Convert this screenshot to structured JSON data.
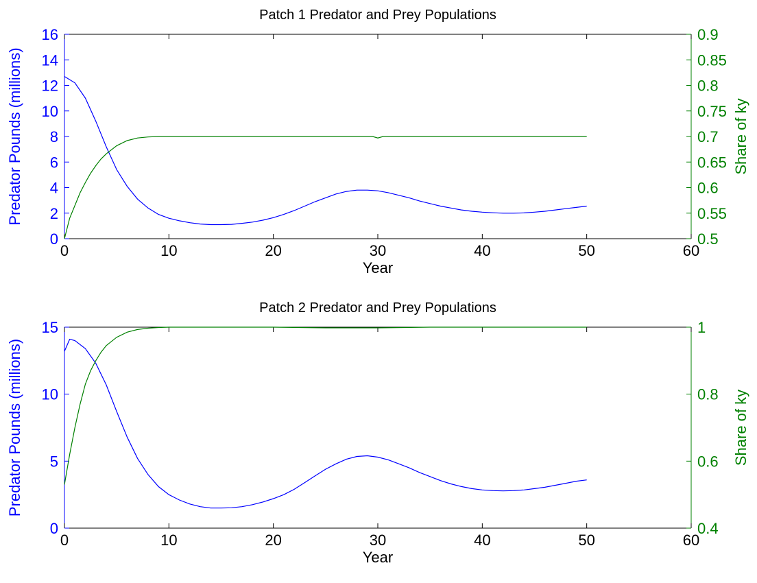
{
  "colors": {
    "left_axis": "#0000ff",
    "right_axis": "#008000",
    "x_axis": "#000000"
  },
  "chart_data": [
    {
      "type": "line",
      "title": "Patch 1 Predator and Prey Populations",
      "xlabel": "Year",
      "ylabel_left": "Predator Pounds (millions)",
      "ylabel_right": "Share of ky",
      "xlim": [
        0,
        60
      ],
      "ylim_left": [
        0,
        16
      ],
      "ylim_right": [
        0.5,
        0.9
      ],
      "xticks": [
        "0",
        "10",
        "20",
        "30",
        "40",
        "50",
        "60"
      ],
      "yticks_left": [
        "0",
        "2",
        "4",
        "6",
        "8",
        "10",
        "12",
        "14",
        "16"
      ],
      "yticks_right": [
        "0.5",
        "0.55",
        "0.6",
        "0.65",
        "0.7",
        "0.75",
        "0.8",
        "0.85",
        "0.9"
      ],
      "grid": false,
      "series": [
        {
          "axis": "left",
          "x": [
            0,
            1,
            2,
            3,
            4,
            5,
            6,
            7,
            8,
            9,
            10,
            11,
            12,
            13,
            14,
            15,
            16,
            17,
            18,
            19,
            20,
            21,
            22,
            23,
            24,
            25,
            26,
            27,
            28,
            29,
            30,
            31,
            32,
            33,
            34,
            35,
            36,
            37,
            38,
            39,
            40,
            41,
            42,
            43,
            44,
            45,
            46,
            47,
            48,
            49,
            50
          ],
          "values": [
            12.7,
            12.2,
            11.0,
            9.2,
            7.2,
            5.4,
            4.1,
            3.1,
            2.4,
            1.9,
            1.6,
            1.4,
            1.25,
            1.15,
            1.1,
            1.1,
            1.12,
            1.2,
            1.3,
            1.45,
            1.65,
            1.9,
            2.2,
            2.55,
            2.9,
            3.2,
            3.5,
            3.7,
            3.8,
            3.8,
            3.75,
            3.6,
            3.4,
            3.2,
            2.95,
            2.75,
            2.55,
            2.4,
            2.25,
            2.15,
            2.08,
            2.03,
            2.0,
            2.0,
            2.02,
            2.08,
            2.15,
            2.25,
            2.35,
            2.45,
            2.55
          ]
        },
        {
          "axis": "right",
          "x": [
            0,
            0.5,
            1,
            1.5,
            2,
            2.5,
            3,
            3.5,
            4,
            5,
            6,
            7,
            8,
            9,
            10,
            15,
            20,
            25,
            29.5,
            30,
            30.5,
            35,
            40,
            45,
            50
          ],
          "values": [
            0.5,
            0.54,
            0.565,
            0.59,
            0.61,
            0.628,
            0.643,
            0.656,
            0.666,
            0.682,
            0.692,
            0.697,
            0.699,
            0.7,
            0.7,
            0.7,
            0.7,
            0.7,
            0.7,
            0.697,
            0.7,
            0.7,
            0.7,
            0.7,
            0.7
          ]
        }
      ]
    },
    {
      "type": "line",
      "title": "Patch 2 Predator and Prey Populations",
      "xlabel": "Year",
      "ylabel_left": "Predator Pounds (millions)",
      "ylabel_right": "Share of ky",
      "xlim": [
        0,
        60
      ],
      "ylim_left": [
        0,
        15
      ],
      "ylim_right": [
        0.4,
        1
      ],
      "xticks": [
        "0",
        "10",
        "20",
        "30",
        "40",
        "50",
        "60"
      ],
      "yticks_left": [
        "0",
        "5",
        "10",
        "15"
      ],
      "yticks_right": [
        "0.4",
        "0.6",
        "0.8",
        "1"
      ],
      "grid": false,
      "series": [
        {
          "axis": "left",
          "x": [
            0,
            0.5,
            1,
            2,
            3,
            4,
            5,
            6,
            7,
            8,
            9,
            10,
            11,
            12,
            13,
            14,
            15,
            16,
            17,
            18,
            19,
            20,
            21,
            22,
            23,
            24,
            25,
            26,
            27,
            28,
            29,
            30,
            31,
            32,
            33,
            34,
            35,
            36,
            37,
            38,
            39,
            40,
            41,
            42,
            43,
            44,
            45,
            46,
            47,
            48,
            49,
            50
          ],
          "values": [
            13.2,
            14.1,
            14.0,
            13.4,
            12.3,
            10.7,
            8.7,
            6.8,
            5.2,
            4.0,
            3.1,
            2.5,
            2.1,
            1.8,
            1.6,
            1.5,
            1.5,
            1.52,
            1.6,
            1.75,
            1.95,
            2.2,
            2.5,
            2.9,
            3.4,
            3.9,
            4.4,
            4.8,
            5.15,
            5.35,
            5.4,
            5.3,
            5.1,
            4.8,
            4.5,
            4.15,
            3.85,
            3.55,
            3.3,
            3.1,
            2.95,
            2.85,
            2.8,
            2.78,
            2.8,
            2.85,
            2.95,
            3.05,
            3.2,
            3.35,
            3.5,
            3.6
          ]
        },
        {
          "axis": "right",
          "x": [
            0,
            0.5,
            1,
            1.5,
            2,
            2.5,
            3,
            3.5,
            4,
            5,
            6,
            7,
            8,
            9,
            10,
            15,
            20,
            25,
            30,
            35,
            40,
            45,
            50
          ],
          "values": [
            0.53,
            0.62,
            0.7,
            0.77,
            0.83,
            0.87,
            0.9,
            0.925,
            0.945,
            0.97,
            0.985,
            0.993,
            0.997,
            0.999,
            1.0,
            1.0,
            1.0,
            0.998,
            0.998,
            1.0,
            1.0,
            1.0,
            1.0
          ]
        }
      ]
    }
  ]
}
